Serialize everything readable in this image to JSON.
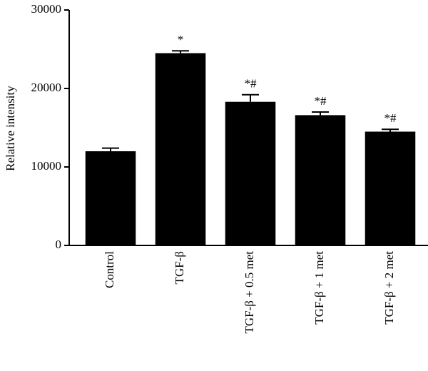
{
  "chart_data": {
    "type": "bar",
    "y_label": "Relative intensity",
    "categories": [
      "Control",
      "TGF-β",
      "TGF-β + 0.5 met",
      "TGF-β + 1 met",
      "TGF-β + 2 met"
    ],
    "values": [
      12000,
      24500,
      18300,
      16600,
      14500
    ],
    "errors": [
      400,
      300,
      900,
      400,
      300
    ],
    "annotations": [
      null,
      "*",
      "*#",
      "*#",
      "*#"
    ],
    "color": "#000000",
    "ylim": [
      0,
      30000
    ],
    "yticks": [
      0,
      10000,
      20000,
      30000
    ],
    "grid": false
  }
}
